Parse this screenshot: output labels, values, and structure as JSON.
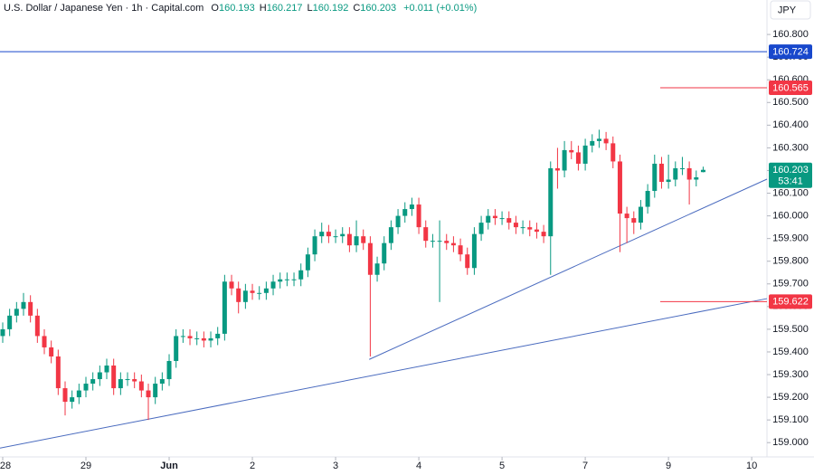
{
  "chart_data": {
    "type": "candlestick",
    "title": "U.S. Dollar / Japanese Yen · 1h · Capital.com",
    "ohlc_prefixes": [
      "O",
      "H",
      "L",
      "C"
    ],
    "change": "+0.011 (+0.01%)",
    "currency": "JPY",
    "countdown": "53:41",
    "up_color": "#089981",
    "down_color": "#f23645",
    "x": [
      0,
      2,
      4,
      6,
      8,
      10,
      12,
      14,
      16,
      18,
      20,
      22,
      24,
      26,
      28,
      30,
      32,
      34,
      36,
      38,
      40,
      42,
      44,
      46,
      48,
      50,
      52,
      54,
      56,
      58,
      60,
      62,
      64,
      66,
      68,
      70,
      72,
      74,
      76,
      78,
      80,
      82,
      84,
      86,
      88,
      90,
      92,
      94,
      96,
      98,
      100,
      102,
      104,
      106,
      108,
      110,
      112,
      114,
      116,
      118,
      120,
      122,
      124,
      126,
      128,
      130,
      132,
      134,
      136,
      138,
      140,
      142,
      144,
      146,
      148,
      150,
      152,
      154,
      156,
      158,
      160,
      162,
      164,
      166,
      168,
      170,
      172,
      174,
      176,
      178,
      180,
      182,
      184,
      186,
      188,
      190,
      192,
      194,
      196,
      198,
      200,
      202
    ],
    "open": [
      159.47,
      159.5,
      159.56,
      159.59,
      159.62,
      159.56,
      159.47,
      159.42,
      159.38,
      159.24,
      159.18,
      159.2,
      159.23,
      159.26,
      159.28,
      159.31,
      159.34,
      159.24,
      159.28,
      159.28,
      159.27,
      159.23,
      159.2,
      159.26,
      159.28,
      159.36,
      159.47,
      159.47,
      159.46,
      159.46,
      159.45,
      159.46,
      159.48,
      159.71,
      159.68,
      159.62,
      159.67,
      159.66,
      159.66,
      159.68,
      159.71,
      159.72,
      159.72,
      159.72,
      159.76,
      159.83,
      159.91,
      159.93,
      159.91,
      159.91,
      159.92,
      159.87,
      159.91,
      159.88,
      159.74,
      159.79,
      159.88,
      159.95,
      160.0,
      160.03,
      160.05,
      159.95,
      159.89,
      159.89,
      159.89,
      159.88,
      159.87,
      159.83,
      159.77,
      159.92,
      159.97,
      160.0,
      159.99,
      159.99,
      159.97,
      159.95,
      159.95,
      159.94,
      159.93,
      159.91,
      160.21,
      160.2,
      160.29,
      160.28,
      160.23,
      160.31,
      160.33,
      160.34,
      160.32,
      160.24,
      160.01,
      159.99,
      159.97,
      160.04,
      160.11,
      160.23,
      160.15,
      160.16,
      160.21,
      160.21,
      160.16,
      160.193
    ],
    "high": [
      159.53,
      159.59,
      159.62,
      159.66,
      159.65,
      159.59,
      159.5,
      159.45,
      159.41,
      159.27,
      159.23,
      159.26,
      159.29,
      159.31,
      159.34,
      159.37,
      159.37,
      159.31,
      159.31,
      159.31,
      159.3,
      159.26,
      159.29,
      159.31,
      159.39,
      159.5,
      159.5,
      159.5,
      159.49,
      159.49,
      159.49,
      159.51,
      159.74,
      159.74,
      159.71,
      159.7,
      159.7,
      159.69,
      159.71,
      159.74,
      159.75,
      159.75,
      159.75,
      159.79,
      159.86,
      159.94,
      159.97,
      159.96,
      159.94,
      159.95,
      159.95,
      159.98,
      159.94,
      159.91,
      159.82,
      159.91,
      159.98,
      160.03,
      160.06,
      160.08,
      160.08,
      159.98,
      159.92,
      159.98,
      159.92,
      159.91,
      159.9,
      159.86,
      159.95,
      160.0,
      160.03,
      160.03,
      160.02,
      160.02,
      160.0,
      159.98,
      159.98,
      159.97,
      159.96,
      160.24,
      160.3,
      160.33,
      160.33,
      160.31,
      160.34,
      160.36,
      160.38,
      160.37,
      160.35,
      160.27,
      160.04,
      160.02,
      160.07,
      160.14,
      160.27,
      160.26,
      160.27,
      160.24,
      160.26,
      160.24,
      160.2,
      160.217
    ],
    "low": [
      159.44,
      159.47,
      159.53,
      159.56,
      159.53,
      159.44,
      159.39,
      159.35,
      159.21,
      159.12,
      159.15,
      159.17,
      159.2,
      159.23,
      159.25,
      159.28,
      159.21,
      159.21,
      159.25,
      159.24,
      159.2,
      159.1,
      159.17,
      159.23,
      159.25,
      159.33,
      159.44,
      159.43,
      159.43,
      159.42,
      159.42,
      159.43,
      159.45,
      159.65,
      159.57,
      159.59,
      159.63,
      159.63,
      159.63,
      159.65,
      159.68,
      159.69,
      159.69,
      159.69,
      159.73,
      159.8,
      159.88,
      159.88,
      159.88,
      159.88,
      159.84,
      159.84,
      159.85,
      159.38,
      159.71,
      159.76,
      159.85,
      159.92,
      159.97,
      160.0,
      159.92,
      159.86,
      159.86,
      159.62,
      159.85,
      159.84,
      159.8,
      159.74,
      159.74,
      159.89,
      159.94,
      159.96,
      159.96,
      159.94,
      159.92,
      159.92,
      159.91,
      159.9,
      159.88,
      159.74,
      160.12,
      160.17,
      160.25,
      160.2,
      160.2,
      160.28,
      160.3,
      160.29,
      160.21,
      159.84,
      159.88,
      159.92,
      159.94,
      160.01,
      160.08,
      160.12,
      160.12,
      160.13,
      160.18,
      160.05,
      160.13,
      160.192
    ],
    "close": [
      159.5,
      159.56,
      159.59,
      159.62,
      159.56,
      159.47,
      159.42,
      159.38,
      159.24,
      159.18,
      159.2,
      159.23,
      159.26,
      159.28,
      159.31,
      159.34,
      159.24,
      159.28,
      159.28,
      159.27,
      159.23,
      159.2,
      159.26,
      159.28,
      159.36,
      159.47,
      159.47,
      159.46,
      159.46,
      159.45,
      159.46,
      159.48,
      159.71,
      159.68,
      159.62,
      159.67,
      159.66,
      159.66,
      159.68,
      159.71,
      159.72,
      159.72,
      159.72,
      159.76,
      159.83,
      159.91,
      159.93,
      159.91,
      159.91,
      159.92,
      159.87,
      159.91,
      159.88,
      159.74,
      159.79,
      159.88,
      159.95,
      160.0,
      160.03,
      160.05,
      159.95,
      159.89,
      159.89,
      159.89,
      159.88,
      159.87,
      159.83,
      159.77,
      159.92,
      159.97,
      160.0,
      159.99,
      159.99,
      159.97,
      159.95,
      159.95,
      159.94,
      159.93,
      159.91,
      160.21,
      160.2,
      160.29,
      160.28,
      160.23,
      160.31,
      160.33,
      160.34,
      160.32,
      160.24,
      160.01,
      159.99,
      159.97,
      160.04,
      160.11,
      160.23,
      160.15,
      160.16,
      160.21,
      160.21,
      160.16,
      160.17,
      160.203
    ],
    "xlim": [
      -0.78,
      220.4
    ],
    "xticks": [
      {
        "value": 0,
        "label": "28"
      },
      {
        "value": 24,
        "label": "29"
      },
      {
        "value": 48,
        "label": "Jun"
      },
      {
        "value": 72,
        "label": "2"
      },
      {
        "value": 96,
        "label": "3"
      },
      {
        "value": 120,
        "label": "4"
      },
      {
        "value": 144,
        "label": "5"
      },
      {
        "value": 168,
        "label": "7"
      },
      {
        "value": 192,
        "label": "9"
      },
      {
        "value": 216,
        "label": "10"
      }
    ],
    "ylim": [
      158.937,
      160.952
    ],
    "yticks": [
      {
        "value": 159.0,
        "label": "159.000"
      },
      {
        "value": 159.1,
        "label": "159.100"
      },
      {
        "value": 159.2,
        "label": "159.200"
      },
      {
        "value": 159.3,
        "label": "159.300"
      },
      {
        "value": 159.4,
        "label": "159.400"
      },
      {
        "value": 159.5,
        "label": "159.500"
      },
      {
        "value": 159.6,
        "label": "159.600"
      },
      {
        "value": 159.7,
        "label": "159.700"
      },
      {
        "value": 159.8,
        "label": "159.800"
      },
      {
        "value": 159.9,
        "label": "159.900"
      },
      {
        "value": 160.0,
        "label": "160.000"
      },
      {
        "value": 160.1,
        "label": "160.100"
      },
      {
        "value": 160.2,
        "label": "160.200"
      },
      {
        "value": 160.3,
        "label": "160.300"
      },
      {
        "value": 160.4,
        "label": "160.400"
      },
      {
        "value": 160.5,
        "label": "160.500"
      },
      {
        "value": 160.6,
        "label": "160.600"
      },
      {
        "value": 160.7,
        "label": "160.700"
      },
      {
        "value": 160.8,
        "label": "160.800"
      }
    ],
    "grid": false,
    "levels": [
      {
        "value": 160.724,
        "color": "#1848cc",
        "extent": "full"
      },
      {
        "value": 160.565,
        "color": "#f23645",
        "extent": "short"
      },
      {
        "value": 159.622,
        "color": "#f23645",
        "extent": "short"
      }
    ],
    "trendlines": [
      {
        "x": [
          -0.78,
          220.4
        ],
        "y": [
          158.976,
          159.635
        ],
        "color": "#4a6bbf"
      },
      {
        "x": [
          105.7,
          220.4
        ],
        "y": [
          159.367,
          160.162
        ],
        "color": "#4a6bbf"
      }
    ]
  }
}
